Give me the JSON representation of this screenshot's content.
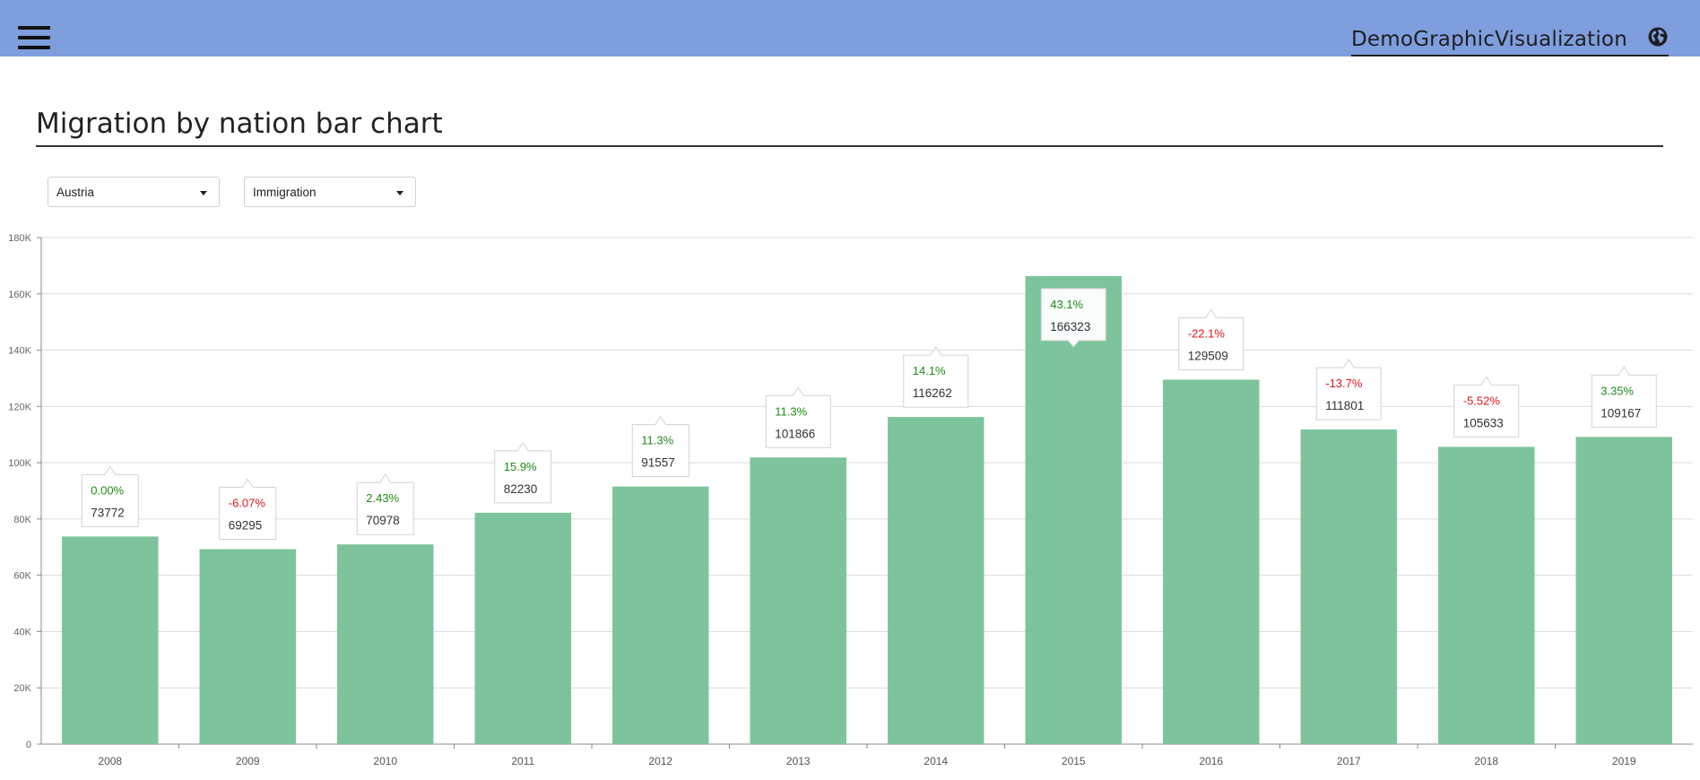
{
  "header": {
    "brand": "DemoGraphicVisualization",
    "menu_icon": "hamburger-menu-icon",
    "language_icon": "globe-icon"
  },
  "page": {
    "title": "Migration by nation bar chart"
  },
  "filters": {
    "country": "Austria",
    "migration_type": "Immigration"
  },
  "colors": {
    "header_bg": "#7f9ede",
    "bar": "#7dc49c",
    "positive": "#1f8a16",
    "negative": "#e0161e"
  },
  "chart_data": {
    "type": "bar",
    "categories": [
      "2008",
      "2009",
      "2010",
      "2011",
      "2012",
      "2013",
      "2014",
      "2015",
      "2016",
      "2017",
      "2018",
      "2019"
    ],
    "values": [
      73772,
      69295,
      70978,
      82230,
      91557,
      101866,
      116262,
      166323,
      129509,
      111801,
      105633,
      109167
    ],
    "changes": [
      "0.00%",
      "-6.07%",
      "2.43%",
      "15.9%",
      "11.3%",
      "11.3%",
      "14.1%",
      "43.1%",
      "-22.1%",
      "-13.7%",
      "-5.52%",
      "3.35%"
    ],
    "ylim": [
      0,
      180000
    ],
    "yticks": [
      "0",
      "20K",
      "40K",
      "60K",
      "80K",
      "100K",
      "120K",
      "140K",
      "160K",
      "180K"
    ],
    "grid": true
  }
}
